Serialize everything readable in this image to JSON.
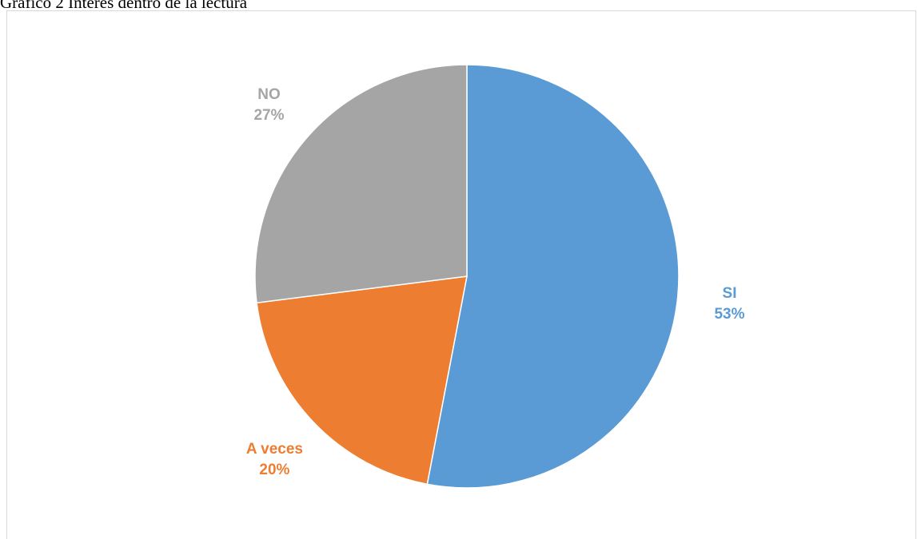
{
  "caption": "Gráfico 2 Interés dentro de la lectura",
  "chart_data": {
    "type": "pie",
    "title": "",
    "slices": [
      {
        "label": "SI",
        "value": 53,
        "value_text": "53%",
        "color": "#5B9BD5"
      },
      {
        "label": "A veces",
        "value": 20,
        "value_text": "20%",
        "color": "#ED7D31"
      },
      {
        "label": "NO",
        "value": 27,
        "value_text": "27%",
        "color": "#A5A5A5"
      }
    ],
    "legend": "none",
    "data_labels": "outside, category name and percentage"
  }
}
